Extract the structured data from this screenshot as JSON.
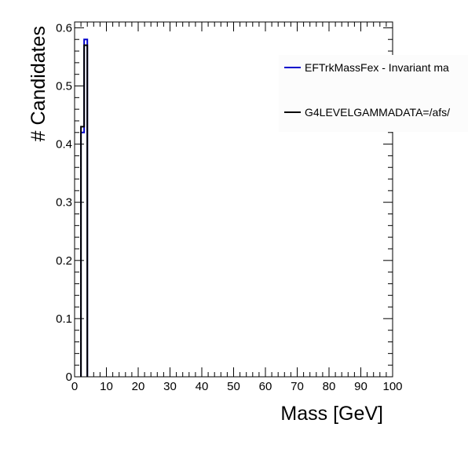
{
  "chart_data": {
    "type": "histogram",
    "title": "",
    "xlabel": "Mass [GeV]",
    "ylabel": "# Candidates",
    "xlim": [
      0,
      100
    ],
    "ylim": [
      0,
      0.61
    ],
    "x_ticks": [
      "0",
      "10",
      "20",
      "30",
      "40",
      "50",
      "60",
      "70",
      "80",
      "90",
      "100"
    ],
    "y_ticks": [
      "0",
      "0.1",
      "0.2",
      "0.3",
      "0.4",
      "0.5",
      "0.6"
    ],
    "grid": false,
    "legend_position": "top-right",
    "series": [
      {
        "name": "EFTrkMassFex - Invariant ma",
        "color": "#0000cc",
        "bins": [
          {
            "x0": 2,
            "x1": 3,
            "y": 0.42
          },
          {
            "x0": 3,
            "x1": 4,
            "y": 0.58
          }
        ]
      },
      {
        "name": "G4LEVELGAMMADATA=/afs/",
        "color": "#000000",
        "bins": [
          {
            "x0": 2,
            "x1": 3,
            "y": 0.43
          },
          {
            "x0": 3,
            "x1": 4,
            "y": 0.57
          }
        ]
      }
    ]
  }
}
